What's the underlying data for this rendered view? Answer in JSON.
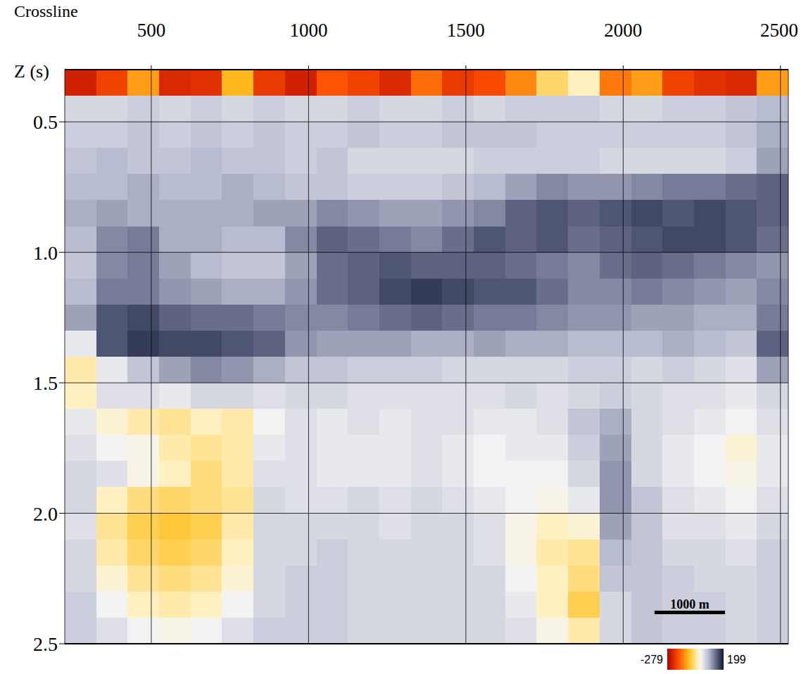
{
  "chart_data": {
    "type": "heatmap",
    "x_label": "Crossline",
    "y_label": "Z (s)",
    "x": [
      275,
      375,
      475,
      575,
      675,
      775,
      875,
      975,
      1075,
      1175,
      1275,
      1375,
      1475,
      1575,
      1675,
      1775,
      1875,
      1975,
      2075,
      2175,
      2275,
      2375,
      2475
    ],
    "y": [
      0.35,
      0.45,
      0.55,
      0.65,
      0.75,
      0.85,
      0.95,
      1.05,
      1.15,
      1.25,
      1.35,
      1.45,
      1.55,
      1.65,
      1.75,
      1.85,
      1.95,
      2.05,
      2.15,
      2.25,
      2.35,
      2.45
    ],
    "cells": [
      [
        -240,
        -200,
        -120,
        -230,
        -220,
        -100,
        -210,
        -240,
        -180,
        -200,
        -230,
        -160,
        -210,
        -190,
        -140,
        -60,
        -20,
        -150,
        -120,
        -200,
        -220,
        -230,
        -120
      ],
      [
        40,
        40,
        50,
        40,
        50,
        40,
        50,
        40,
        40,
        50,
        40,
        40,
        50,
        40,
        50,
        50,
        50,
        40,
        40,
        50,
        50,
        60,
        70
      ],
      [
        50,
        50,
        60,
        50,
        60,
        50,
        60,
        50,
        50,
        60,
        50,
        50,
        60,
        60,
        60,
        50,
        50,
        50,
        50,
        50,
        50,
        60,
        80
      ],
      [
        60,
        70,
        60,
        60,
        70,
        60,
        60,
        50,
        60,
        40,
        40,
        40,
        40,
        50,
        50,
        50,
        50,
        40,
        40,
        40,
        40,
        50,
        90
      ],
      [
        70,
        70,
        80,
        70,
        70,
        80,
        70,
        60,
        60,
        50,
        50,
        50,
        60,
        70,
        90,
        110,
        100,
        100,
        110,
        120,
        120,
        130,
        140
      ],
      [
        80,
        90,
        80,
        80,
        80,
        80,
        90,
        90,
        110,
        100,
        90,
        90,
        100,
        110,
        140,
        150,
        140,
        150,
        160,
        150,
        160,
        150,
        140
      ],
      [
        70,
        110,
        120,
        80,
        80,
        70,
        70,
        110,
        140,
        130,
        120,
        110,
        130,
        150,
        140,
        150,
        130,
        140,
        150,
        160,
        160,
        150,
        130
      ],
      [
        60,
        110,
        120,
        90,
        70,
        60,
        60,
        90,
        130,
        140,
        150,
        140,
        140,
        140,
        130,
        120,
        110,
        130,
        140,
        130,
        120,
        110,
        100
      ],
      [
        70,
        120,
        120,
        100,
        90,
        80,
        80,
        100,
        130,
        140,
        160,
        170,
        160,
        150,
        150,
        130,
        110,
        110,
        120,
        110,
        100,
        90,
        110
      ],
      [
        90,
        150,
        160,
        140,
        130,
        130,
        120,
        110,
        110,
        120,
        130,
        140,
        130,
        120,
        120,
        110,
        100,
        100,
        90,
        90,
        80,
        80,
        120
      ],
      [
        20,
        150,
        170,
        160,
        160,
        150,
        140,
        100,
        90,
        90,
        90,
        80,
        80,
        90,
        80,
        80,
        70,
        70,
        70,
        80,
        70,
        60,
        140
      ],
      [
        -30,
        20,
        60,
        90,
        110,
        100,
        80,
        60,
        60,
        50,
        50,
        50,
        40,
        40,
        40,
        40,
        50,
        50,
        40,
        50,
        40,
        30,
        90
      ],
      [
        -20,
        30,
        30,
        20,
        40,
        40,
        30,
        40,
        40,
        30,
        30,
        30,
        30,
        30,
        40,
        30,
        40,
        50,
        40,
        30,
        30,
        20,
        40
      ],
      [
        20,
        -10,
        -30,
        -40,
        -20,
        -30,
        10,
        30,
        20,
        30,
        20,
        30,
        30,
        20,
        20,
        30,
        60,
        80,
        40,
        30,
        20,
        10,
        30
      ],
      [
        30,
        10,
        0,
        -30,
        -40,
        -30,
        20,
        30,
        20,
        20,
        20,
        30,
        20,
        10,
        20,
        20,
        50,
        90,
        40,
        20,
        10,
        -10,
        20
      ],
      [
        40,
        30,
        0,
        -20,
        -50,
        -30,
        30,
        30,
        20,
        20,
        20,
        30,
        20,
        10,
        10,
        10,
        40,
        100,
        40,
        20,
        10,
        0,
        20
      ],
      [
        40,
        -20,
        -50,
        -60,
        -50,
        -40,
        40,
        30,
        30,
        40,
        30,
        40,
        30,
        20,
        10,
        0,
        20,
        100,
        60,
        30,
        20,
        10,
        30
      ],
      [
        30,
        -40,
        -70,
        -80,
        -70,
        -30,
        40,
        40,
        40,
        40,
        30,
        40,
        40,
        30,
        0,
        -20,
        -10,
        90,
        60,
        30,
        30,
        20,
        40
      ],
      [
        40,
        -30,
        -60,
        -70,
        -60,
        -20,
        40,
        40,
        50,
        40,
        40,
        40,
        40,
        30,
        0,
        -30,
        -40,
        70,
        60,
        40,
        40,
        30,
        50
      ],
      [
        40,
        -10,
        -40,
        -50,
        -40,
        -10,
        40,
        50,
        50,
        40,
        40,
        40,
        40,
        40,
        10,
        -20,
        -50,
        60,
        60,
        50,
        40,
        40,
        50
      ],
      [
        50,
        10,
        -20,
        -30,
        -20,
        10,
        40,
        50,
        50,
        40,
        40,
        40,
        40,
        40,
        20,
        -20,
        -70,
        40,
        60,
        50,
        50,
        40,
        50
      ],
      [
        50,
        30,
        10,
        0,
        10,
        30,
        50,
        50,
        50,
        40,
        40,
        40,
        40,
        40,
        30,
        0,
        -30,
        40,
        60,
        50,
        50,
        40,
        50
      ]
    ],
    "xlim": [
      225,
      2525
    ],
    "ylim": [
      0.3,
      2.5
    ],
    "xticks": [
      500,
      1000,
      1500,
      2000,
      2500
    ],
    "yticks": [
      0.5,
      {
        "value": 1,
        "label": "1.0"
      },
      1.5,
      {
        "value": 2,
        "label": "2.0"
      },
      2.5
    ],
    "grid": true,
    "colorbar": {
      "range": [
        -279,
        199
      ],
      "ticks": [
        -279,
        199
      ]
    },
    "scale_bar": {
      "label": "1000 m",
      "length": 224
    }
  }
}
